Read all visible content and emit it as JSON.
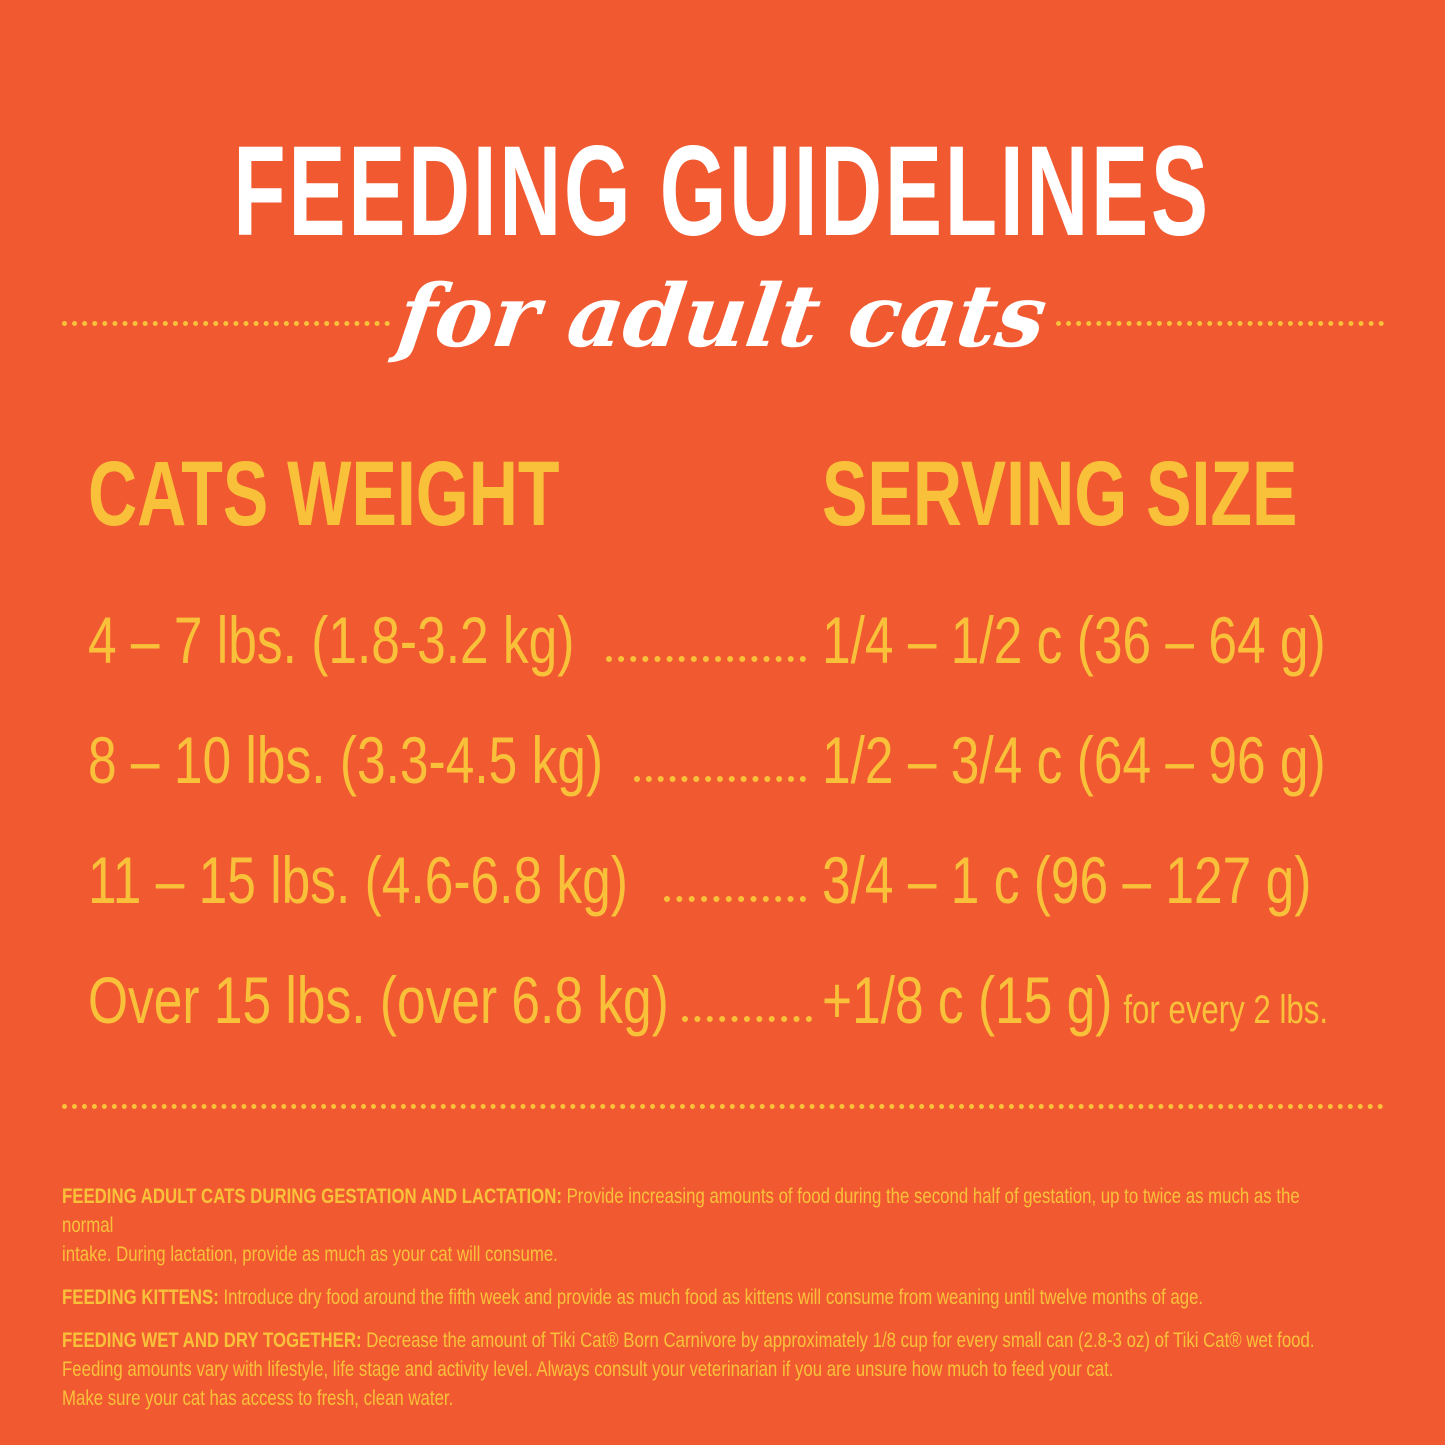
{
  "title": "FEEDING GUIDELINES",
  "subtitle": "for adult cats",
  "headers": {
    "weight": "CATS WEIGHT",
    "serving": "SERVING SIZE"
  },
  "rows": [
    {
      "weight": "4 – 7 lbs. (1.8-3.2 kg)",
      "serving": "1/4 – 1/2 c (36 – 64 g)",
      "note": ""
    },
    {
      "weight": "8 – 10 lbs. (3.3-4.5 kg)",
      "serving": "1/2 – 3/4 c (64 – 96 g)",
      "note": ""
    },
    {
      "weight": "11 – 15 lbs. (4.6-6.8 kg)",
      "serving": "3/4 – 1 c (96 – 127 g)",
      "note": ""
    },
    {
      "weight": "Over 15 lbs. (over 6.8 kg)",
      "serving": "+1/8 c (15 g)",
      "note": "for every 2 lbs."
    }
  ],
  "notes": [
    {
      "label": "FEEDING ADULT CATS DURING GESTATION AND LACTATION:",
      "text": " Provide increasing amounts of food during the second half of gestation, up to twice as much as the normal",
      "text2": "intake.  During lactation, provide as much as your cat will consume."
    },
    {
      "label": "FEEDING KITTENS:",
      "text": " Introduce dry food around the fifth week and provide as much food as kittens will consume from weaning until twelve months of age."
    },
    {
      "label": "FEEDING WET AND DRY TOGETHER:",
      "text": " Decrease the amount of Tiki Cat® Born Carnivore by approximately 1/8 cup for every small can (2.8-3 oz) of Tiki Cat® wet food.",
      "text2": "Feeding amounts vary with lifestyle, life stage and activity level.  Always consult your veterinarian if you are unsure how much to feed your cat.",
      "text3": "Make sure your cat has access to fresh, clean water."
    }
  ],
  "colors": {
    "background": "#F15A31",
    "accent": "#F9C13A",
    "title": "#FFFFFF"
  }
}
